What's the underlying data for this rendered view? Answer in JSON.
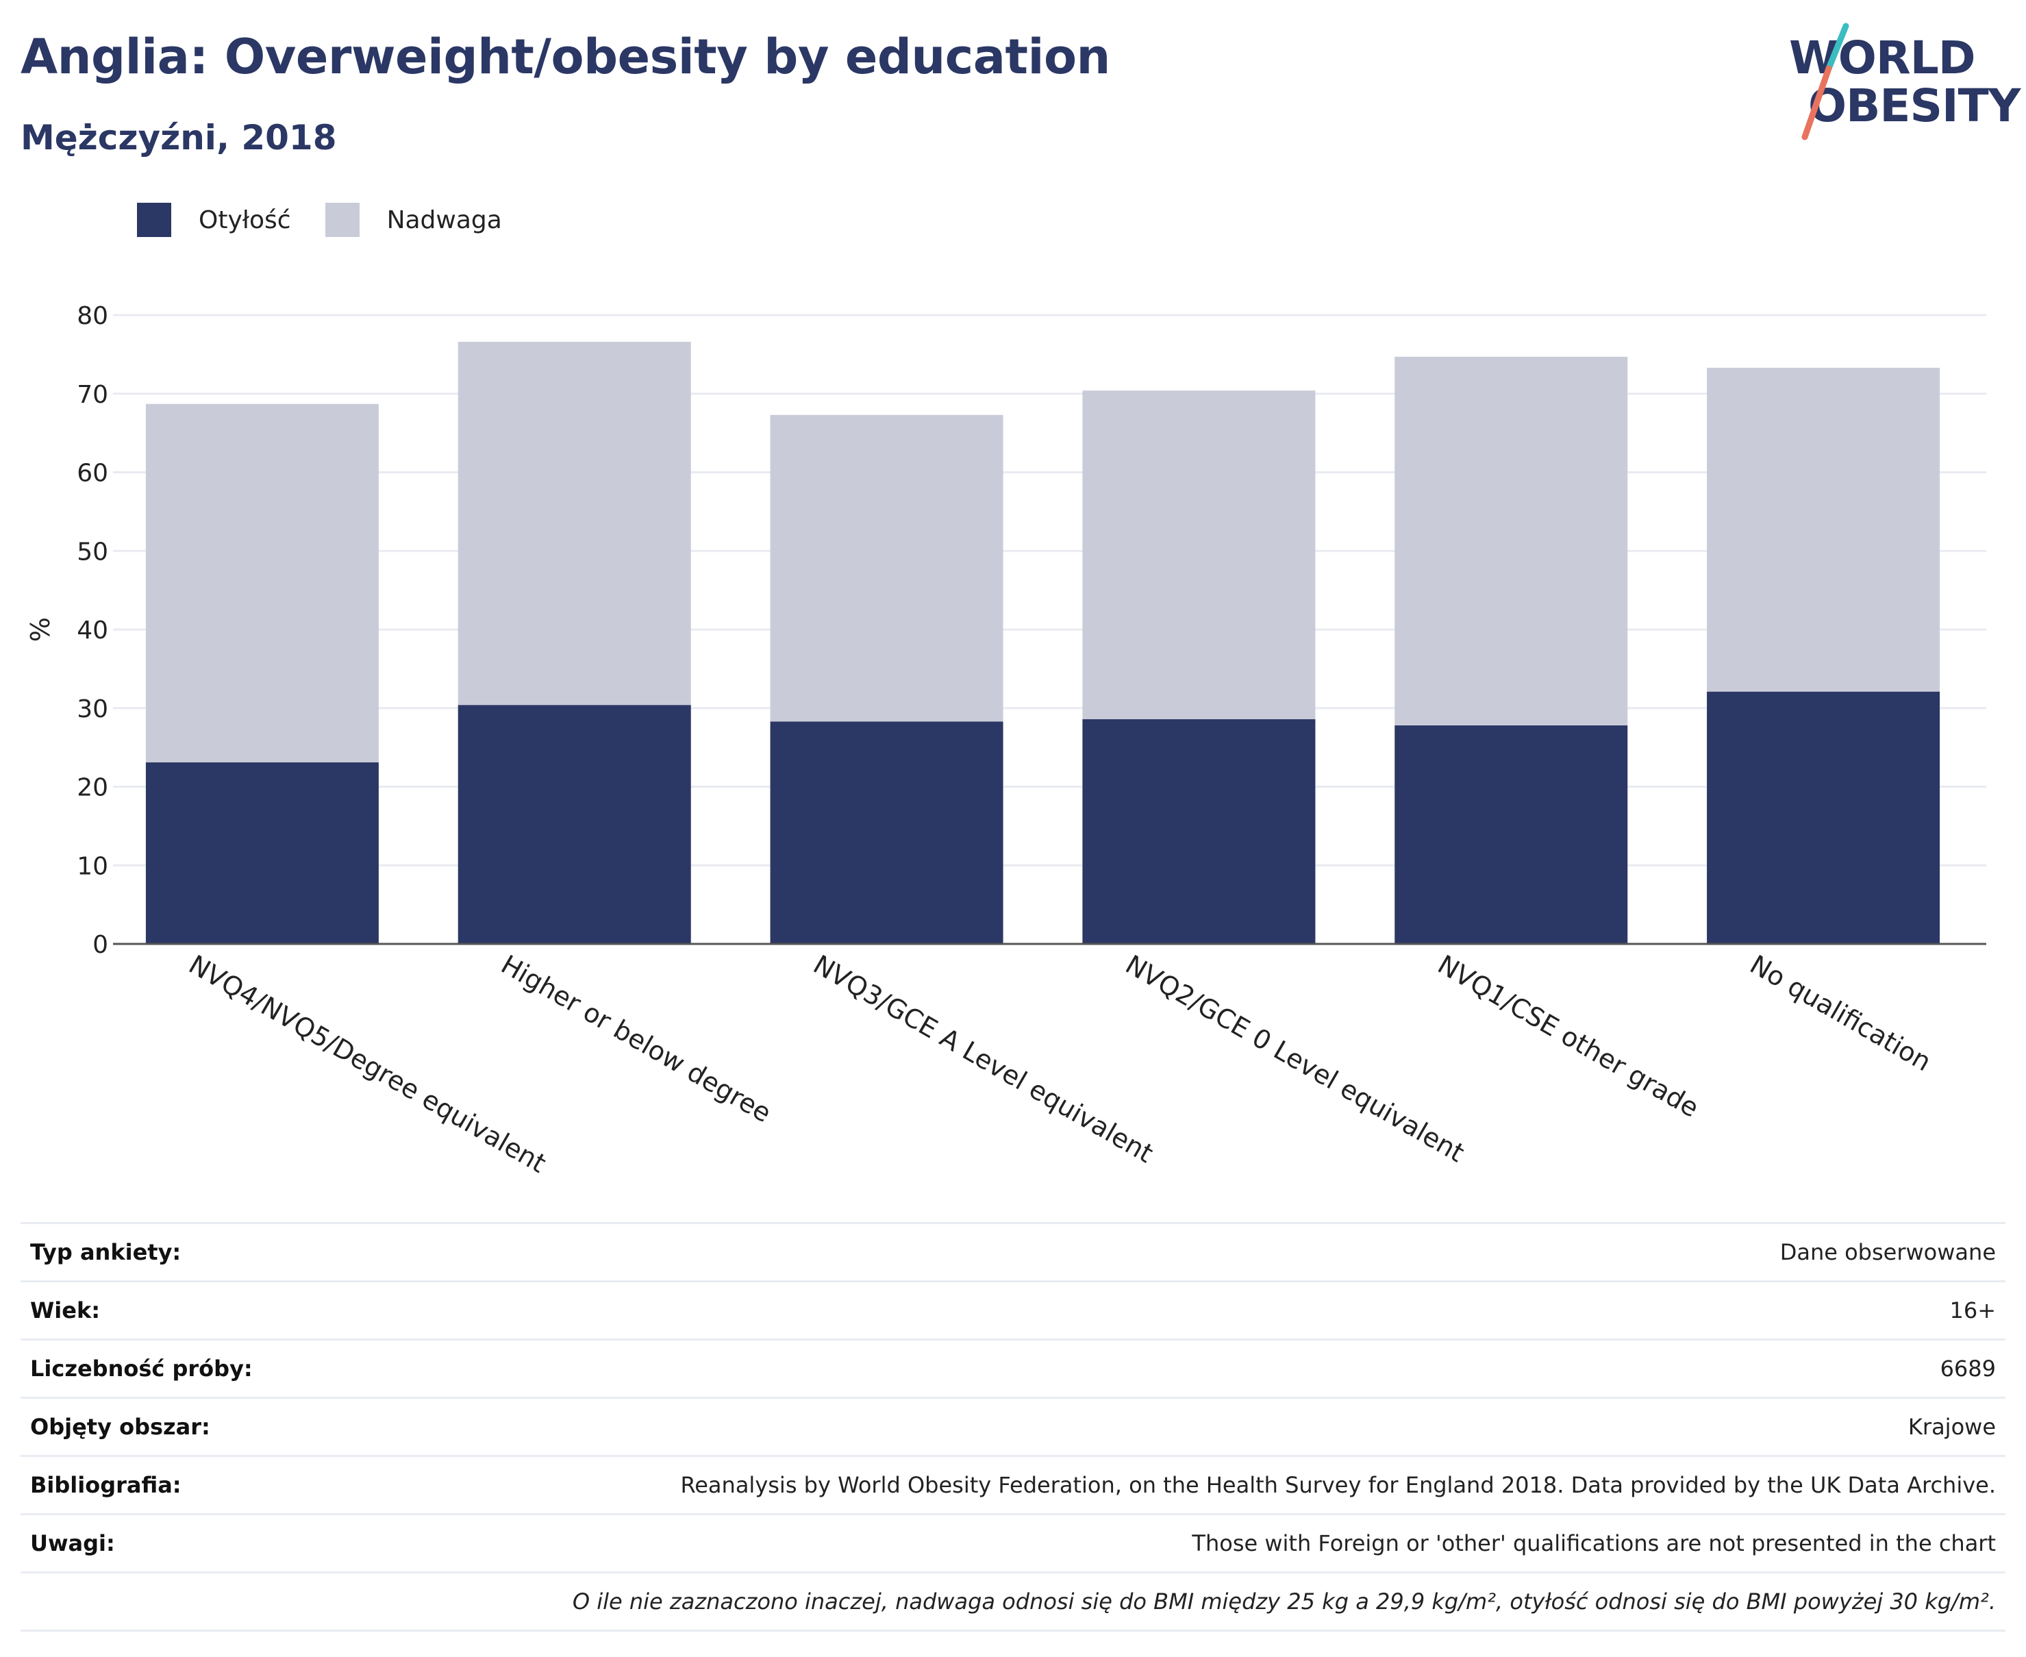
{
  "header": {
    "title": "Anglia: Overweight/obesity by education",
    "subtitle": "Mężczyźni, 2018"
  },
  "logo": {
    "line1": "WORLD",
    "line2": "OBESITY",
    "colors": {
      "text": "#2b3764",
      "accent_teal": "#3bbcc0",
      "accent_coral": "#e8735f"
    }
  },
  "colors": {
    "obesity": "#2b3764",
    "overweight": "#c9ccd8",
    "grid": "#e9ebf1",
    "axis": "#555555"
  },
  "legend": [
    {
      "label": "Otyłość",
      "color": "#2b3764"
    },
    {
      "label": "Nadwaga",
      "color": "#c9ccd8"
    }
  ],
  "chart_data": {
    "type": "bar",
    "stacked": true,
    "categories": [
      "NVQ4/NVQ5/Degree equivalent",
      "Higher or below degree",
      "NVQ3/GCE A Level equivalent",
      "NVQ2/GCE 0 Level equivalent",
      "NVQ1/CSE other grade",
      "No qualification"
    ],
    "series": [
      {
        "name": "Otyłość",
        "values": [
          23.1,
          30.4,
          28.3,
          28.6,
          27.8,
          32.1
        ]
      },
      {
        "name": "Nadwaga",
        "values": [
          45.6,
          46.2,
          39.0,
          41.8,
          46.9,
          41.2
        ]
      }
    ],
    "ylabel": "%",
    "ylim": [
      0,
      80
    ],
    "yticks": [
      0,
      10,
      20,
      30,
      40,
      50,
      60,
      70,
      80
    ],
    "grid": true,
    "legend_position": "top-left"
  },
  "meta": {
    "rows": [
      {
        "label": "Typ ankiety:",
        "value": "Dane obserwowane"
      },
      {
        "label": "Wiek:",
        "value": "16+"
      },
      {
        "label": "Liczebność próby:",
        "value": "6689"
      },
      {
        "label": "Objęty obszar:",
        "value": "Krajowe"
      },
      {
        "label": "Bibliografia:",
        "value": "Reanalysis by World Obesity Federation, on the Health Survey for England 2018. Data provided by the UK Data Archive."
      },
      {
        "label": "Uwagi:",
        "value": "Those with Foreign or 'other' qualifications are not presented in the chart"
      }
    ],
    "note": "O ile nie zaznaczono inaczej, nadwaga odnosi się do BMI między 25 kg a 29,9 kg/m², otyłość odnosi się do BMI powyżej 30 kg/m²."
  }
}
